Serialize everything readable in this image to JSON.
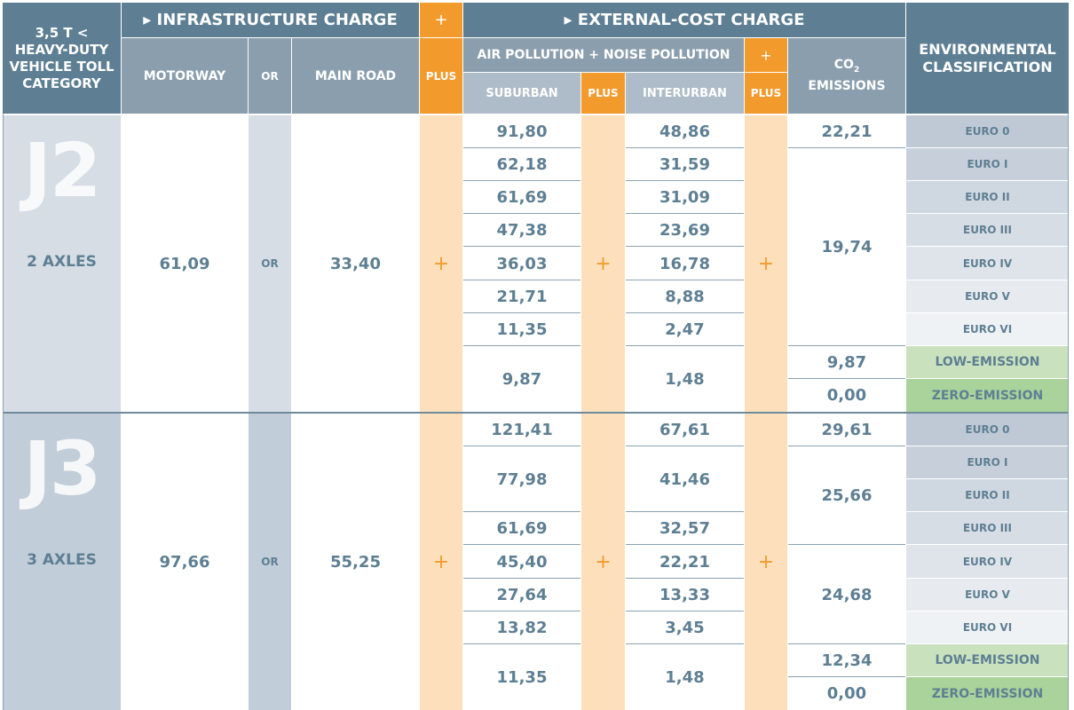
{
  "header": {
    "category_label_line1": "3,5 T <",
    "category_label_line2": "HEAVY-DUTY",
    "category_label_line3": "VEHICLE TOLL",
    "category_label_line4": "CATEGORY",
    "infrastructure_charge": "▸ INFRASTRUCTURE CHARGE",
    "external_cost_charge": "▸ EXTERNAL-COST CHARGE",
    "plus_symbol": "+",
    "plus_word": "PLUS",
    "motorway": "MOTORWAY",
    "or": "OR",
    "main_road": "MAIN ROAD",
    "air_noise": "AIR POLLUTION + NOISE POLLUTION",
    "suburban": "SUBURBAN",
    "interurban": "INTERURBAN",
    "co2_line1": "CO",
    "co2_sub": "2",
    "co2_line2": "EMISSIONS",
    "env_class_line1": "ENVIRONMENTAL",
    "env_class_line2": "CLASSIFICATION"
  },
  "j2": {
    "code": "J2",
    "axles": "2 AXLES",
    "motorway": "61,09",
    "or": "OR",
    "main_road": "33,40",
    "plus": "+",
    "suburban": [
      "91,80",
      "62,18",
      "61,69",
      "47,38",
      "36,03",
      "21,71",
      "11,35",
      "9,87"
    ],
    "interurban": [
      "48,86",
      "31,59",
      "31,09",
      "23,69",
      "16,78",
      "8,88",
      "2,47",
      "1,48"
    ],
    "co2": [
      "22,21",
      "19,74",
      "9,87",
      "0,00"
    ],
    "env": [
      "EURO 0",
      "EURO I",
      "EURO II",
      "EURO III",
      "EURO IV",
      "EURO V",
      "EURO VI",
      "LOW-EMISSION",
      "ZERO-EMISSION"
    ]
  },
  "j3": {
    "code": "J3",
    "axles": "3 AXLES",
    "motorway": "97,66",
    "or": "OR",
    "main_road": "55,25",
    "plus": "+",
    "suburban": [
      "121,41",
      "77,98",
      "61,69",
      "45,40",
      "27,64",
      "13,82",
      "11,35"
    ],
    "interurban": [
      "67,61",
      "41,46",
      "32,57",
      "22,21",
      "13,33",
      "3,45",
      "1,48"
    ],
    "co2": [
      "29,61",
      "25,66",
      "24,68",
      "12,34",
      "0,00"
    ],
    "env": [
      "EURO 0",
      "EURO I",
      "EURO II",
      "EURO III",
      "EURO IV",
      "EURO V",
      "EURO VI",
      "LOW-EMISSION",
      "ZERO-EMISSION"
    ]
  },
  "colors": {
    "header_dark": "#5e7f93",
    "orange": "#f39a2c",
    "orange_light": "#fde0bb",
    "low_emission": "#c9e2bd",
    "zero_emission": "#a9d39a"
  }
}
